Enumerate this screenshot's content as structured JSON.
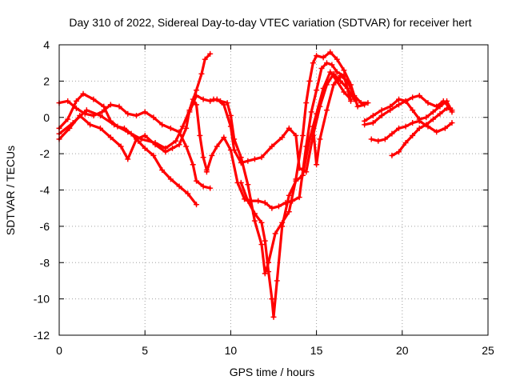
{
  "chart_data": {
    "type": "scatter",
    "title": "Day 310 of 2022, Sidereal Day-to-day VTEC variation (SDTVAR) for receiver hert",
    "xlabel": "GPS time / hours",
    "ylabel": "SDTVAR / TECUs",
    "xlim": [
      0,
      25
    ],
    "ylim": [
      -12,
      4
    ],
    "xticks": [
      "0",
      "5",
      "10",
      "15",
      "20",
      "25"
    ],
    "yticks": [
      "4",
      "2",
      "0",
      "-2",
      "-4",
      "-6",
      "-8",
      "-10",
      "-12"
    ],
    "grid": true,
    "legend": "none",
    "marker": "+",
    "color": "#ff0000",
    "series": [
      {
        "points": [
          [
            0,
            -0.9
          ],
          [
            0.8,
            -0.3
          ],
          [
            1.6,
            0.4
          ],
          [
            2.4,
            0.1
          ],
          [
            3.2,
            -0.4
          ],
          [
            4.0,
            -0.8
          ],
          [
            4.8,
            -1.2
          ],
          [
            5.6,
            -1.4
          ],
          [
            6.2,
            -1.7
          ],
          [
            6.8,
            -1.3
          ],
          [
            7.2,
            -0.5
          ],
          [
            7.6,
            0.4
          ],
          [
            8.0,
            1.5
          ],
          [
            8.3,
            2.4
          ],
          [
            8.5,
            3.2
          ],
          [
            8.8,
            3.5
          ]
        ]
      },
      {
        "points": [
          [
            0,
            0.8
          ],
          [
            0.5,
            0.9
          ],
          [
            1.0,
            0.5
          ],
          [
            1.5,
            0.2
          ],
          [
            2.0,
            0.1
          ],
          [
            2.5,
            0.3
          ],
          [
            3.0,
            0.7
          ],
          [
            3.5,
            0.6
          ],
          [
            4.0,
            0.2
          ],
          [
            4.5,
            0.1
          ],
          [
            5.0,
            0.3
          ],
          [
            5.5,
            0.0
          ],
          [
            6.0,
            -0.4
          ],
          [
            6.5,
            -0.6
          ],
          [
            7.0,
            -0.8
          ],
          [
            7.4,
            -1.6
          ],
          [
            7.8,
            -2.6
          ],
          [
            8.0,
            -3.5
          ],
          [
            8.4,
            -3.8
          ],
          [
            8.8,
            -3.9
          ]
        ]
      },
      {
        "points": [
          [
            0,
            -0.6
          ],
          [
            0.5,
            -0.1
          ],
          [
            1.0,
            0.9
          ],
          [
            1.4,
            1.3
          ],
          [
            2.0,
            1.0
          ],
          [
            2.6,
            0.6
          ],
          [
            3.0,
            -0.2
          ],
          [
            3.4,
            -0.5
          ],
          [
            3.8,
            -0.6
          ],
          [
            4.2,
            -0.9
          ],
          [
            4.6,
            -1.3
          ],
          [
            5.0,
            -1.7
          ],
          [
            5.5,
            -2.1
          ],
          [
            6.0,
            -2.9
          ],
          [
            6.5,
            -3.4
          ],
          [
            7.0,
            -3.8
          ],
          [
            7.5,
            -4.2
          ],
          [
            8.0,
            -4.8
          ]
        ]
      },
      {
        "points": [
          [
            0,
            -1.2
          ],
          [
            0.6,
            -0.6
          ],
          [
            1.2,
            0.1
          ],
          [
            1.8,
            -0.4
          ],
          [
            2.4,
            -0.6
          ],
          [
            3.0,
            -1.1
          ],
          [
            3.6,
            -1.6
          ],
          [
            4.0,
            -2.3
          ],
          [
            4.5,
            -1.2
          ],
          [
            5.0,
            -1.0
          ],
          [
            5.6,
            -1.5
          ],
          [
            6.2,
            -1.9
          ],
          [
            6.6,
            -1.7
          ],
          [
            7.0,
            -1.5
          ],
          [
            7.4,
            -0.6
          ],
          [
            7.6,
            0.4
          ],
          [
            7.8,
            1.0
          ],
          [
            8.0,
            0.7
          ],
          [
            8.2,
            -1.0
          ],
          [
            8.4,
            -2.2
          ],
          [
            8.6,
            -2.9
          ]
        ]
      },
      {
        "points": [
          [
            8.6,
            -3.0
          ],
          [
            8.9,
            -2.1
          ],
          [
            9.2,
            -1.6
          ],
          [
            9.6,
            -1.1
          ],
          [
            10.0,
            -1.8
          ],
          [
            10.4,
            -3.6
          ],
          [
            10.8,
            -4.5
          ],
          [
            11.2,
            -4.6
          ],
          [
            11.6,
            -4.6
          ],
          [
            12.0,
            -4.7
          ],
          [
            12.4,
            -5.0
          ],
          [
            12.8,
            -4.9
          ],
          [
            13.2,
            -4.7
          ],
          [
            13.6,
            -4.6
          ],
          [
            14.0,
            -4.4
          ],
          [
            14.4,
            -1.6
          ],
          [
            14.7,
            0.3
          ],
          [
            15.0,
            1.5
          ],
          [
            15.3,
            2.7
          ],
          [
            15.6,
            3.0
          ],
          [
            15.9,
            2.9
          ],
          [
            16.2,
            2.5
          ],
          [
            16.6,
            2.3
          ],
          [
            17.0,
            0.9
          ]
        ]
      },
      {
        "points": [
          [
            9.0,
            1.0
          ],
          [
            9.4,
            0.9
          ],
          [
            9.8,
            0.8
          ],
          [
            10.0,
            0.1
          ],
          [
            10.2,
            -1.2
          ],
          [
            10.6,
            -2.2
          ],
          [
            11.0,
            -3.7
          ],
          [
            11.4,
            -5.7
          ],
          [
            11.8,
            -7.0
          ],
          [
            12.0,
            -8.6
          ],
          [
            12.2,
            -8.0
          ],
          [
            12.6,
            -6.4
          ],
          [
            13.0,
            -5.8
          ],
          [
            13.4,
            -5.2
          ],
          [
            13.8,
            -3.4
          ],
          [
            14.2,
            -1.0
          ],
          [
            14.4,
            0.8
          ],
          [
            14.6,
            2.0
          ],
          [
            14.8,
            3.0
          ],
          [
            15.0,
            3.4
          ],
          [
            15.4,
            3.3
          ],
          [
            15.8,
            3.6
          ],
          [
            16.2,
            3.2
          ],
          [
            16.6,
            2.6
          ],
          [
            17.0,
            1.8
          ],
          [
            17.4,
            0.6
          ],
          [
            17.8,
            0.7
          ]
        ]
      },
      {
        "points": [
          [
            7.6,
            0.3
          ],
          [
            8.0,
            1.2
          ],
          [
            8.4,
            1.0
          ],
          [
            8.8,
            0.9
          ],
          [
            9.2,
            1.0
          ],
          [
            9.6,
            0.7
          ],
          [
            10.0,
            -0.5
          ],
          [
            10.2,
            -1.8
          ],
          [
            10.6,
            -2.5
          ],
          [
            11.0,
            -2.4
          ],
          [
            11.4,
            -2.3
          ],
          [
            11.8,
            -2.2
          ],
          [
            12.4,
            -1.6
          ],
          [
            13.0,
            -1.1
          ],
          [
            13.4,
            -0.6
          ],
          [
            13.8,
            -1.0
          ],
          [
            14.0,
            -2.8
          ],
          [
            14.4,
            -3.0
          ],
          [
            14.8,
            -1.0
          ],
          [
            15.2,
            0.6
          ],
          [
            15.6,
            1.8
          ],
          [
            16.0,
            2.4
          ],
          [
            16.4,
            2.0
          ],
          [
            16.8,
            1.6
          ],
          [
            17.2,
            1.0
          ]
        ]
      },
      {
        "points": [
          [
            10.6,
            -3.6
          ],
          [
            11.0,
            -4.6
          ],
          [
            11.4,
            -5.3
          ],
          [
            11.8,
            -5.8
          ],
          [
            12.0,
            -6.8
          ],
          [
            12.2,
            -8.5
          ],
          [
            12.4,
            -10.0
          ],
          [
            12.5,
            -11.0
          ],
          [
            12.7,
            -9.0
          ],
          [
            13.0,
            -6.0
          ],
          [
            13.4,
            -4.3
          ],
          [
            13.8,
            -3.5
          ],
          [
            14.2,
            -3.2
          ],
          [
            14.6,
            -1.2
          ],
          [
            15.0,
            0.2
          ],
          [
            15.4,
            1.6
          ],
          [
            15.8,
            2.5
          ],
          [
            16.2,
            2.0
          ],
          [
            16.6,
            1.4
          ],
          [
            17.0,
            1.0
          ]
        ]
      },
      {
        "points": [
          [
            14.8,
            -0.5
          ],
          [
            15.0,
            -2.6
          ],
          [
            15.2,
            -1.2
          ],
          [
            15.6,
            0.4
          ],
          [
            16.0,
            1.8
          ],
          [
            16.4,
            2.3
          ],
          [
            16.8,
            2.0
          ],
          [
            17.2,
            1.2
          ],
          [
            17.6,
            0.8
          ],
          [
            18.0,
            0.8
          ]
        ]
      },
      {
        "points": [
          [
            17.8,
            -0.2
          ],
          [
            18.3,
            0.1
          ],
          [
            18.8,
            0.4
          ],
          [
            19.3,
            0.6
          ],
          [
            19.8,
            1.0
          ],
          [
            20.2,
            0.9
          ],
          [
            20.6,
            0.4
          ],
          [
            21.0,
            -0.1
          ],
          [
            21.4,
            0.0
          ],
          [
            21.8,
            0.3
          ],
          [
            22.2,
            0.6
          ],
          [
            22.6,
            0.9
          ],
          [
            22.9,
            0.3
          ]
        ]
      },
      {
        "points": [
          [
            17.8,
            -0.4
          ],
          [
            18.3,
            -0.3
          ],
          [
            18.8,
            0.1
          ],
          [
            19.3,
            0.4
          ],
          [
            19.8,
            0.7
          ],
          [
            20.2,
            0.9
          ],
          [
            20.6,
            1.1
          ],
          [
            21.0,
            1.2
          ],
          [
            21.5,
            0.8
          ],
          [
            22.0,
            0.6
          ],
          [
            22.4,
            0.9
          ],
          [
            22.8,
            0.5
          ]
        ]
      },
      {
        "points": [
          [
            18.2,
            -1.2
          ],
          [
            18.6,
            -1.3
          ],
          [
            19.0,
            -1.2
          ],
          [
            19.4,
            -0.9
          ],
          [
            19.8,
            -0.6
          ],
          [
            20.2,
            -0.5
          ],
          [
            20.6,
            -0.3
          ],
          [
            21.0,
            -0.2
          ],
          [
            21.5,
            -0.5
          ],
          [
            22.0,
            -0.8
          ],
          [
            22.5,
            -0.6
          ],
          [
            22.9,
            -0.3
          ]
        ]
      },
      {
        "points": [
          [
            19.4,
            -2.1
          ],
          [
            19.8,
            -1.9
          ],
          [
            20.2,
            -1.4
          ],
          [
            20.6,
            -1.0
          ],
          [
            21.0,
            -0.6
          ],
          [
            21.4,
            -0.4
          ],
          [
            21.8,
            -0.1
          ],
          [
            22.2,
            0.2
          ],
          [
            22.6,
            0.5
          ],
          [
            22.9,
            0.4
          ]
        ]
      }
    ]
  }
}
